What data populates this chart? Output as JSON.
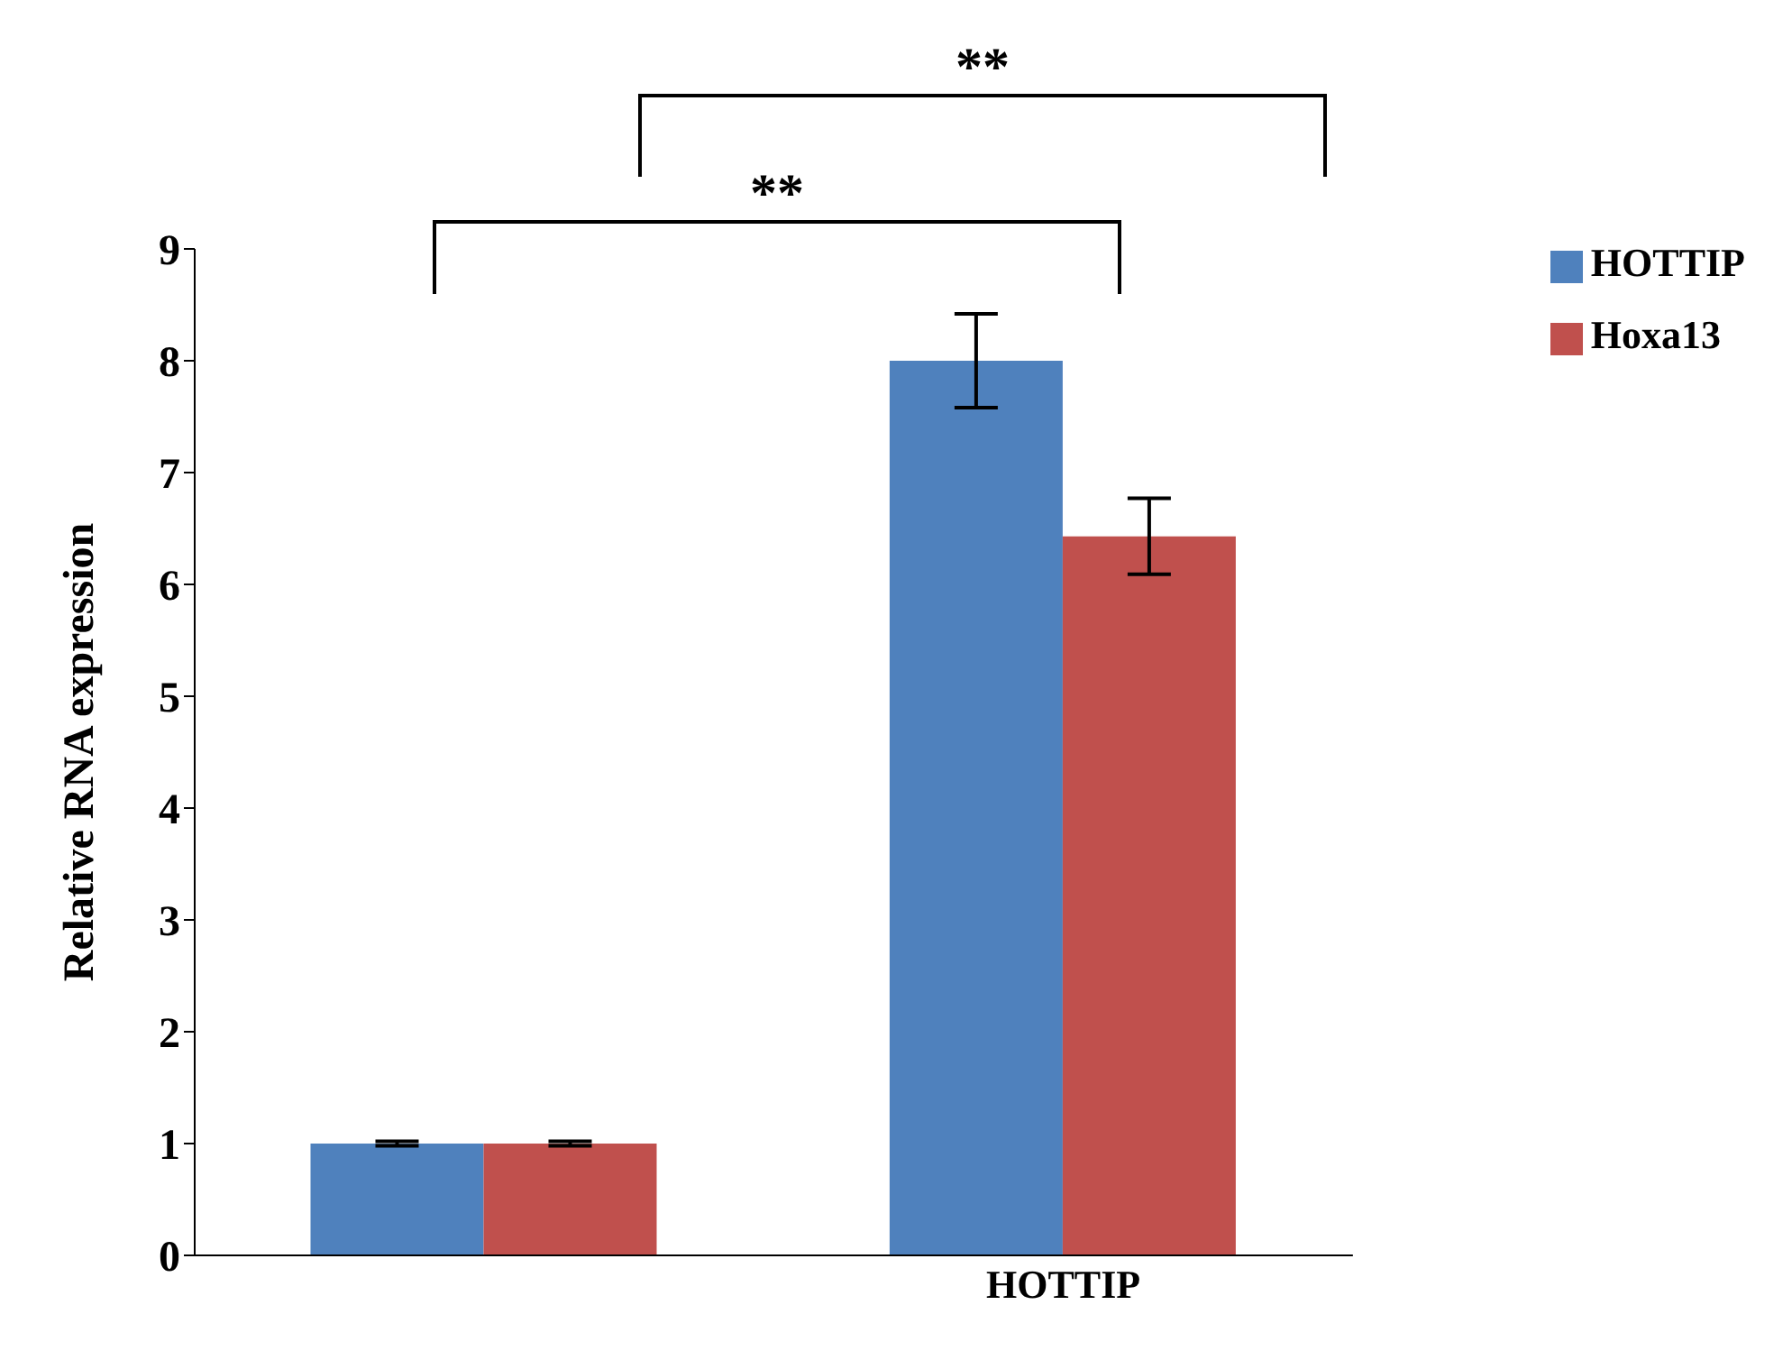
{
  "chart_data": {
    "type": "bar",
    "ylabel": "Relative RNA expression",
    "categories": [
      null,
      "HOTTIP"
    ],
    "series": [
      {
        "name": "HOTTIP",
        "color": "#4f81bd",
        "values": [
          1,
          8
        ],
        "errors": [
          0.02,
          0.42
        ]
      },
      {
        "name": "Hoxa13",
        "color": "#c0504d",
        "values": [
          1,
          6.43
        ],
        "errors": [
          0.02,
          0.34
        ]
      }
    ],
    "ylim": [
      0,
      9
    ],
    "yticks": [
      0,
      1,
      2,
      3,
      4,
      5,
      6,
      7,
      8,
      9
    ],
    "legend": "top right",
    "annotations": [
      "**",
      "**"
    ]
  }
}
